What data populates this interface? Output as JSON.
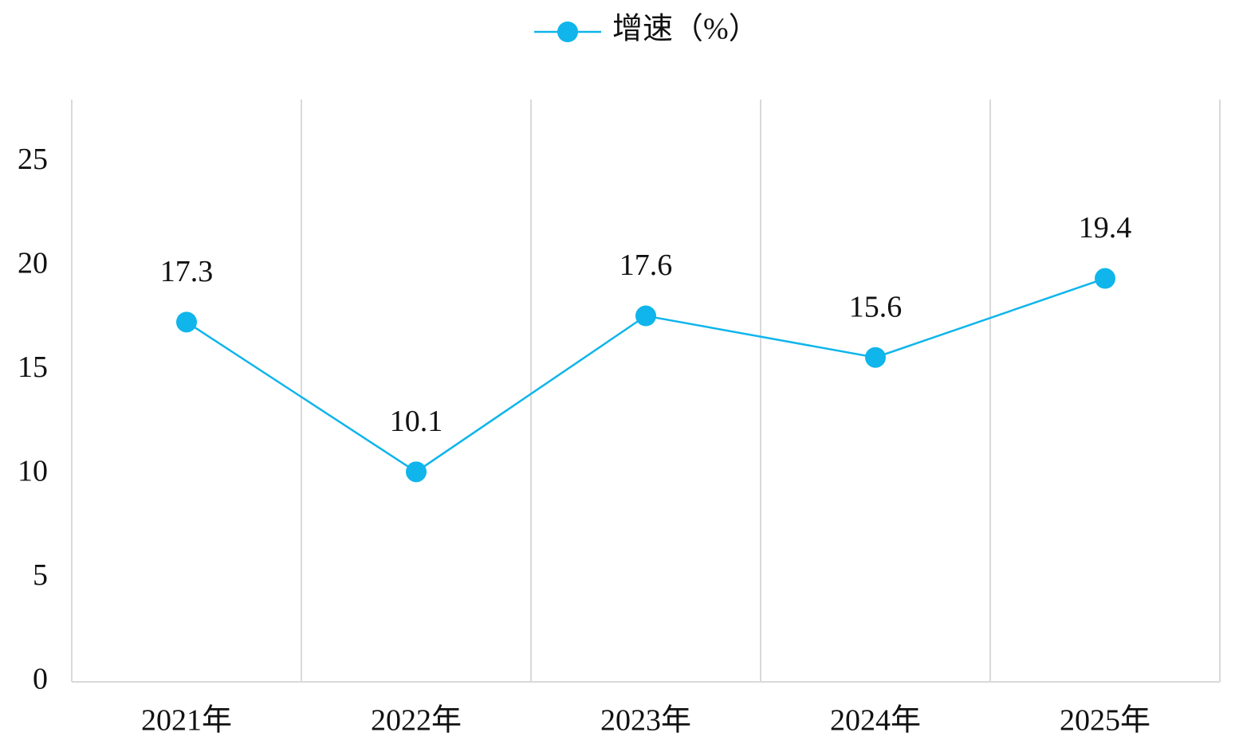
{
  "chart_data": {
    "type": "line",
    "categories": [
      "2021年",
      "2022年",
      "2023年",
      "2024年",
      "2025年"
    ],
    "series": [
      {
        "name": "增速（%）",
        "color": "#0fb5eb",
        "values": [
          17.3,
          10.1,
          17.6,
          15.6,
          19.4
        ]
      }
    ],
    "ylim": [
      0,
      28
    ],
    "yticks": [
      0,
      5,
      10,
      15,
      20,
      25
    ],
    "legend": "top"
  }
}
